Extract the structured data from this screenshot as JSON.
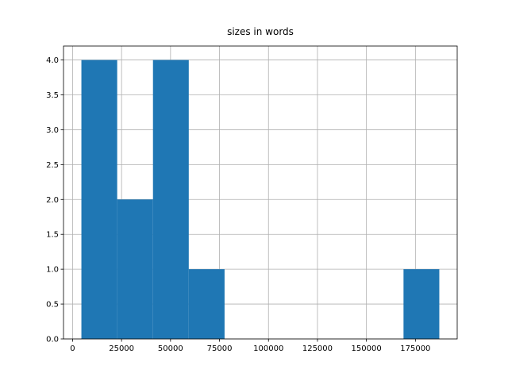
{
  "chart_data": {
    "type": "histogram",
    "title": "sizes in words",
    "bins": [
      4500,
      22770,
      41040,
      59310,
      77580,
      95850,
      114120,
      132390,
      150660,
      168930,
      187200
    ],
    "counts": [
      4,
      2,
      4,
      1,
      0,
      0,
      0,
      0,
      0,
      1
    ],
    "color": "#1f77b4",
    "xlim": [
      -4635,
      196335
    ],
    "xticks": [
      0,
      25000,
      50000,
      75000,
      100000,
      125000,
      150000,
      175000
    ],
    "ylim": [
      0,
      4.2
    ],
    "yticks": [
      {
        "value": 0,
        "label": "0.0"
      },
      {
        "value": 0.5,
        "label": "0.5"
      },
      {
        "value": 1,
        "label": "1.0"
      },
      {
        "value": 1.5,
        "label": "1.5"
      },
      {
        "value": 2,
        "label": "2.0"
      },
      {
        "value": 2.5,
        "label": "2.5"
      },
      {
        "value": 3,
        "label": "3.0"
      },
      {
        "value": 3.5,
        "label": "3.5"
      },
      {
        "value": 4,
        "label": "4.0"
      }
    ],
    "grid": true
  }
}
